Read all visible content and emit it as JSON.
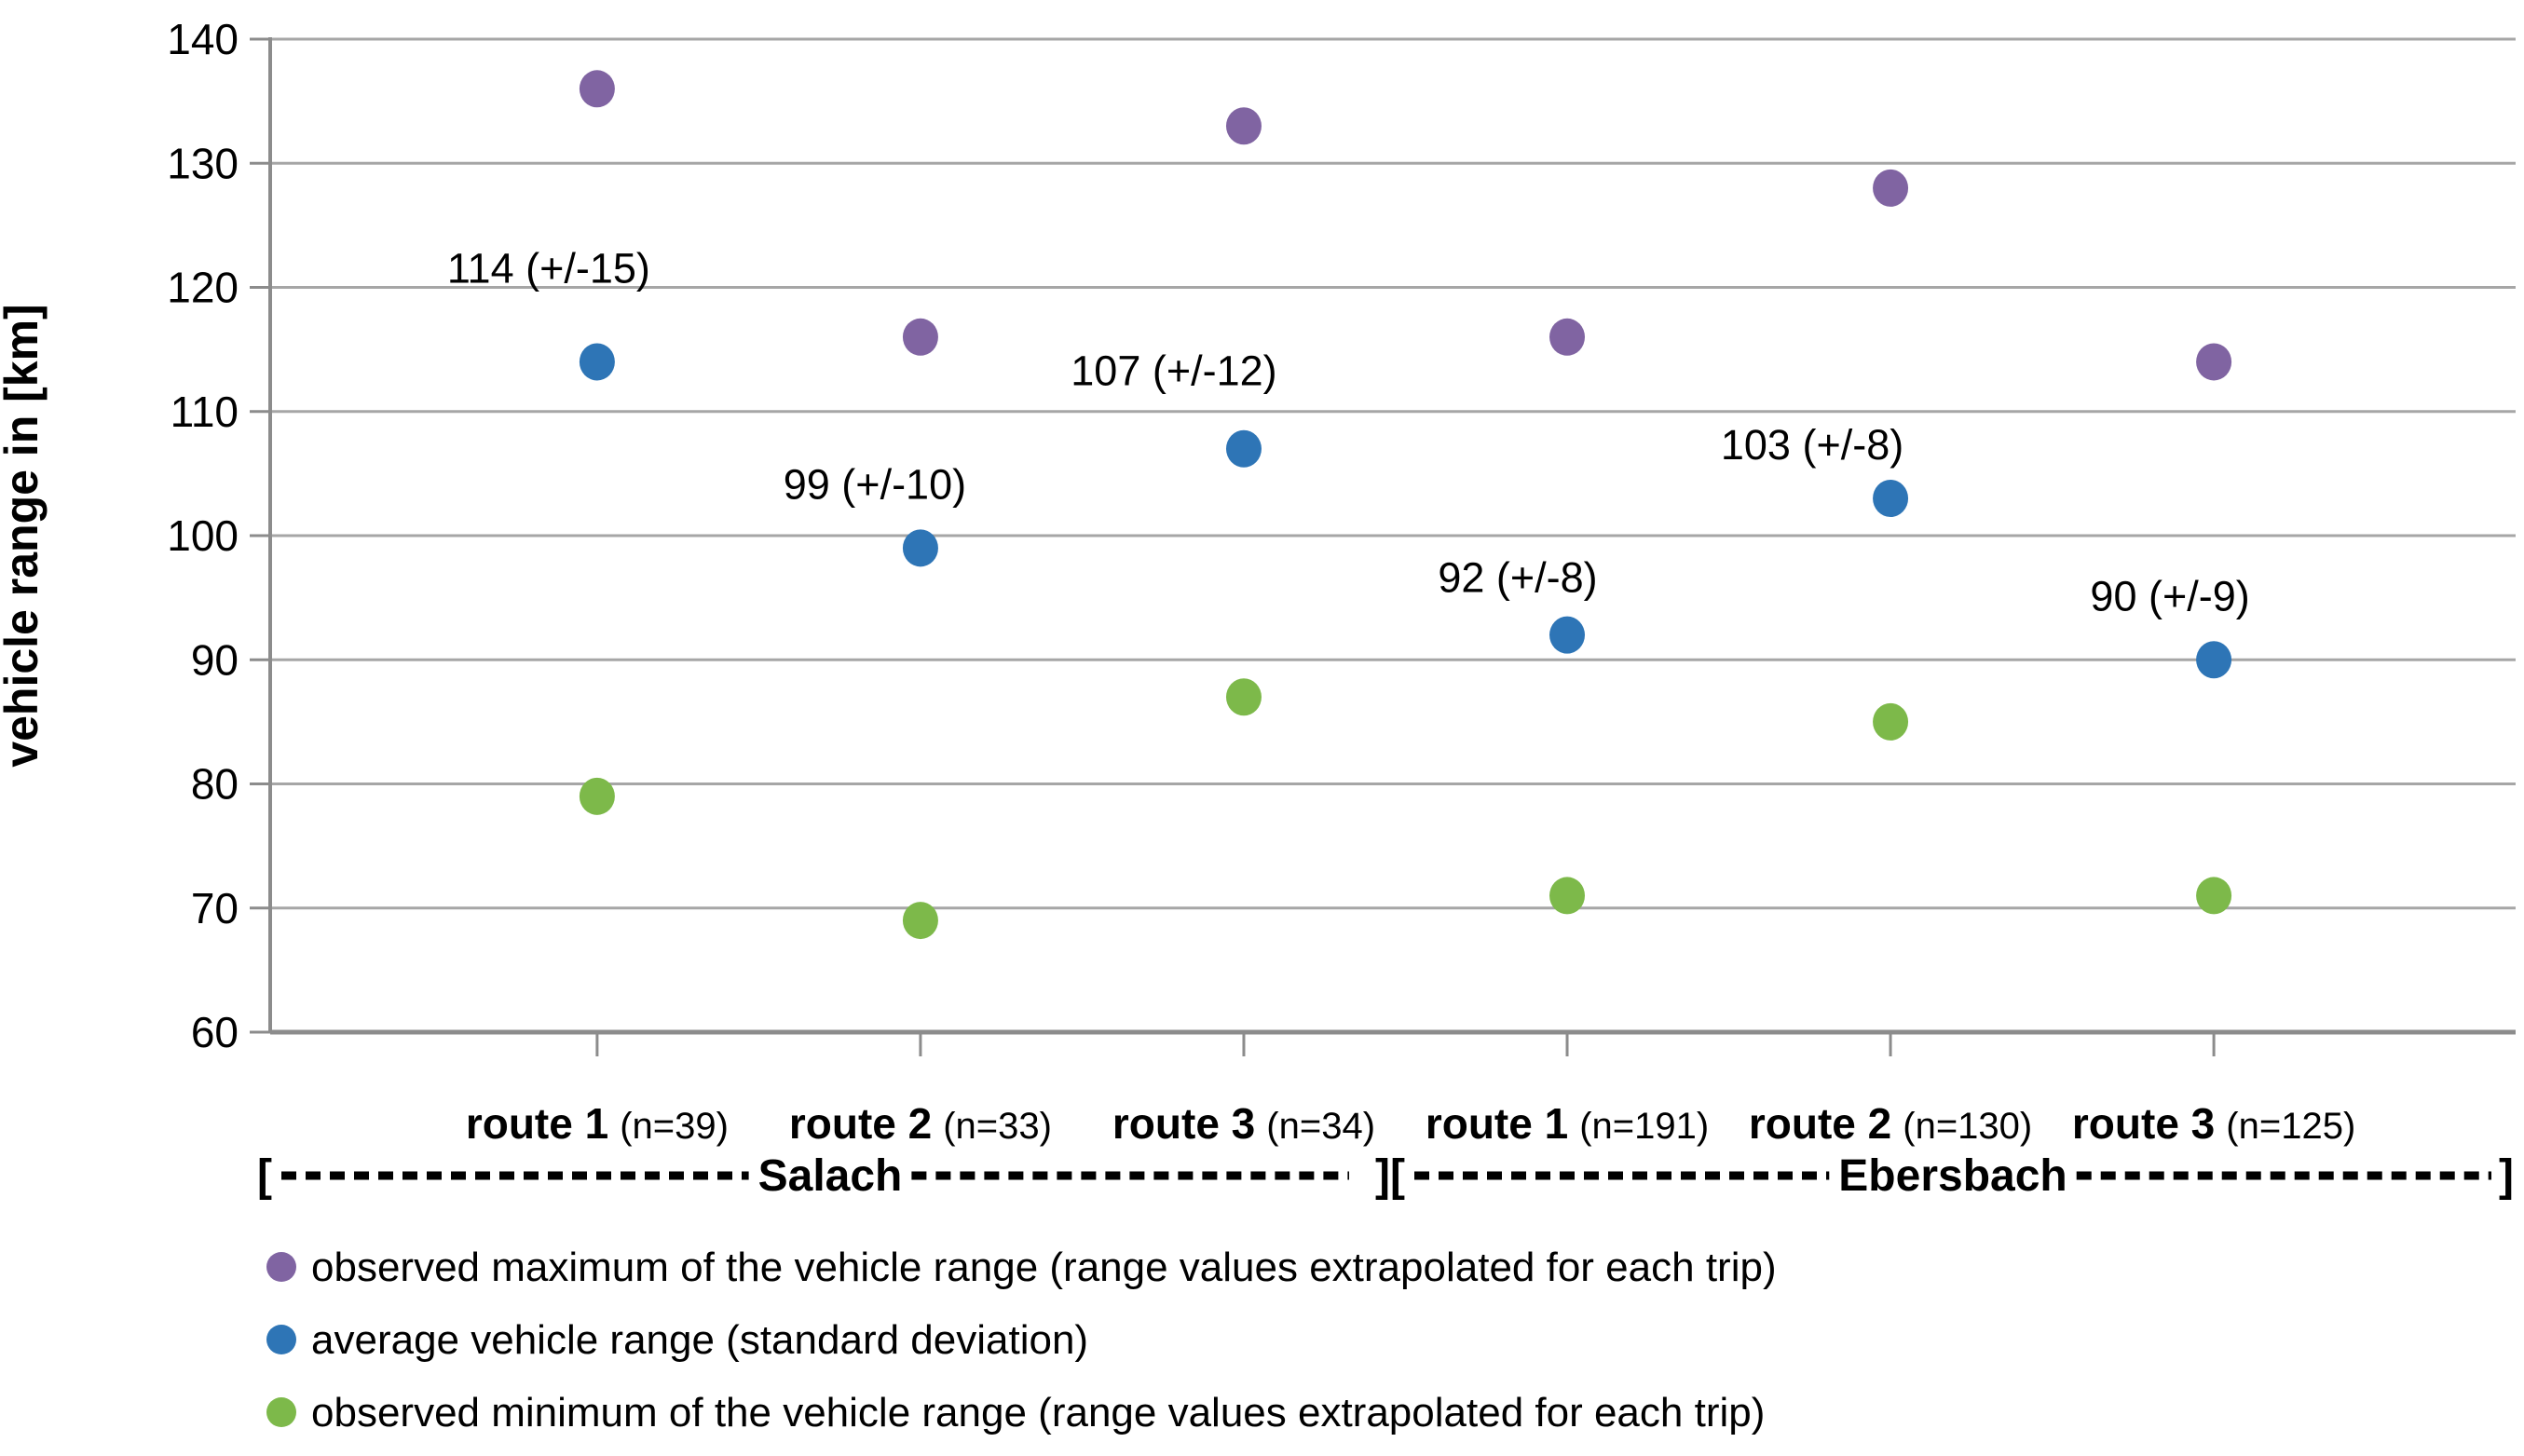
{
  "chart_data": {
    "type": "scatter",
    "title": "",
    "xlabel": "",
    "ylabel": "vehicle range in [km]",
    "ylim": [
      60,
      140
    ],
    "yticks": [
      140,
      130,
      120,
      110,
      100,
      90,
      80,
      70,
      60
    ],
    "grid": true,
    "legend_position": "bottom-left",
    "categories": [
      {
        "route": "route 1",
        "n": "(n=39)",
        "site": "Salach"
      },
      {
        "route": "route 2",
        "n": "(n=33)",
        "site": "Salach"
      },
      {
        "route": "route 3",
        "n": "(n=34)",
        "site": "Salach"
      },
      {
        "route": "route 1",
        "n": "(n=191)",
        "site": "Ebersbach"
      },
      {
        "route": "route 2",
        "n": "(n=130)",
        "site": "Ebersbach"
      },
      {
        "route": "route 3",
        "n": "(n=125)",
        "site": "Ebersbach"
      }
    ],
    "series": [
      {
        "name": "observed maximum of the vehicle range (range values extrapolated for each trip)",
        "color": "#8064A2",
        "values": [
          136,
          116,
          133,
          116,
          128,
          114
        ]
      },
      {
        "name": "average vehicle range (standard deviation)",
        "color": "#2E75B6",
        "values": [
          114,
          99,
          107,
          92,
          103,
          90
        ],
        "labels": [
          "114 (+/-15)",
          "99 (+/-10)",
          "107 (+/-12)",
          "92 (+/-8)",
          "103 (+/-8)",
          "90 (+/-9)"
        ],
        "label_offsets": [
          [
            -52,
            -100
          ],
          [
            -49,
            -68
          ],
          [
            -75,
            -83
          ],
          [
            -53,
            -61
          ],
          [
            -84,
            -57
          ],
          [
            -47,
            -68
          ]
        ]
      },
      {
        "name": "observed minimum of the vehicle range (range values extrapolated for each trip)",
        "color": "#7DB94A",
        "values": [
          79,
          69,
          87,
          71,
          85,
          71
        ]
      }
    ],
    "bracket_line": {
      "open": "[",
      "salach_label": "Salach",
      "divider": "][",
      "ebersbach_label": "Ebersbach",
      "close": "]"
    }
  }
}
